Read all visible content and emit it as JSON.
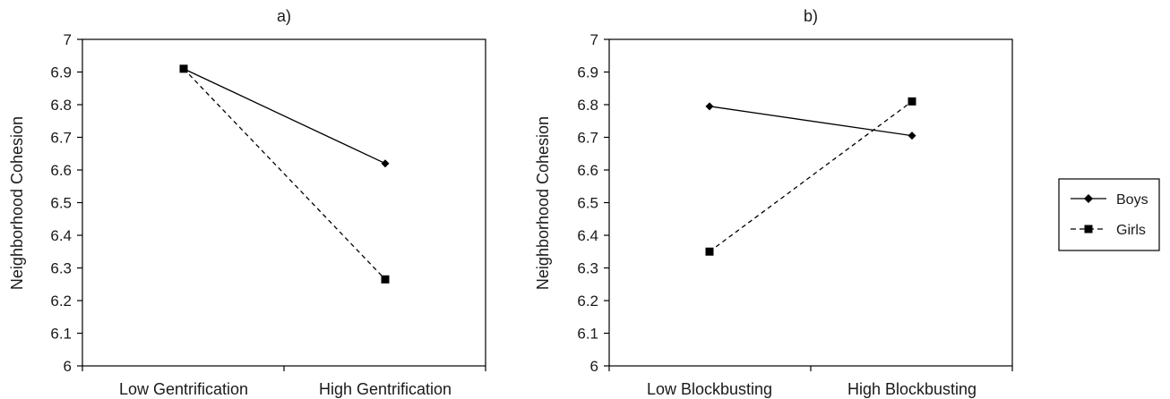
{
  "chart_data": [
    {
      "type": "line",
      "title": "a)",
      "xlabel": "",
      "ylabel": "Neighborhood Cohesion",
      "ylim": [
        6,
        7
      ],
      "yticks": [
        "6",
        "6.1",
        "6.2",
        "6.3",
        "6.4",
        "6.5",
        "6.6",
        "6.7",
        "6.8",
        "6.9",
        "7"
      ],
      "categories": [
        "Low Gentrification",
        "High Gentrification"
      ],
      "series": [
        {
          "name": "Boys",
          "values": [
            6.91,
            6.62
          ],
          "style": "solid",
          "marker": "diamond"
        },
        {
          "name": "Girls",
          "values": [
            6.91,
            6.265
          ],
          "style": "dashed",
          "marker": "square"
        }
      ],
      "grid": false
    },
    {
      "type": "line",
      "title": "b)",
      "xlabel": "",
      "ylabel": "Neighborhood Cohesion",
      "ylim": [
        6,
        7
      ],
      "yticks": [
        "6",
        "6.1",
        "6.2",
        "6.3",
        "6.4",
        "6.5",
        "6.6",
        "6.7",
        "6.8",
        "6.9",
        "7"
      ],
      "categories": [
        "Low Blockbusting",
        "High Blockbusting"
      ],
      "series": [
        {
          "name": "Boys",
          "values": [
            6.795,
            6.705
          ],
          "style": "solid",
          "marker": "diamond"
        },
        {
          "name": "Girls",
          "values": [
            6.35,
            6.81
          ],
          "style": "dashed",
          "marker": "square"
        }
      ],
      "grid": false
    }
  ],
  "legend": {
    "placement": "right",
    "items": [
      {
        "label": "Boys",
        "style": "solid",
        "marker": "diamond"
      },
      {
        "label": "Girls",
        "style": "dashed",
        "marker": "square"
      }
    ]
  },
  "colors": {
    "line": "#000000",
    "text": "#1a1a1a"
  }
}
